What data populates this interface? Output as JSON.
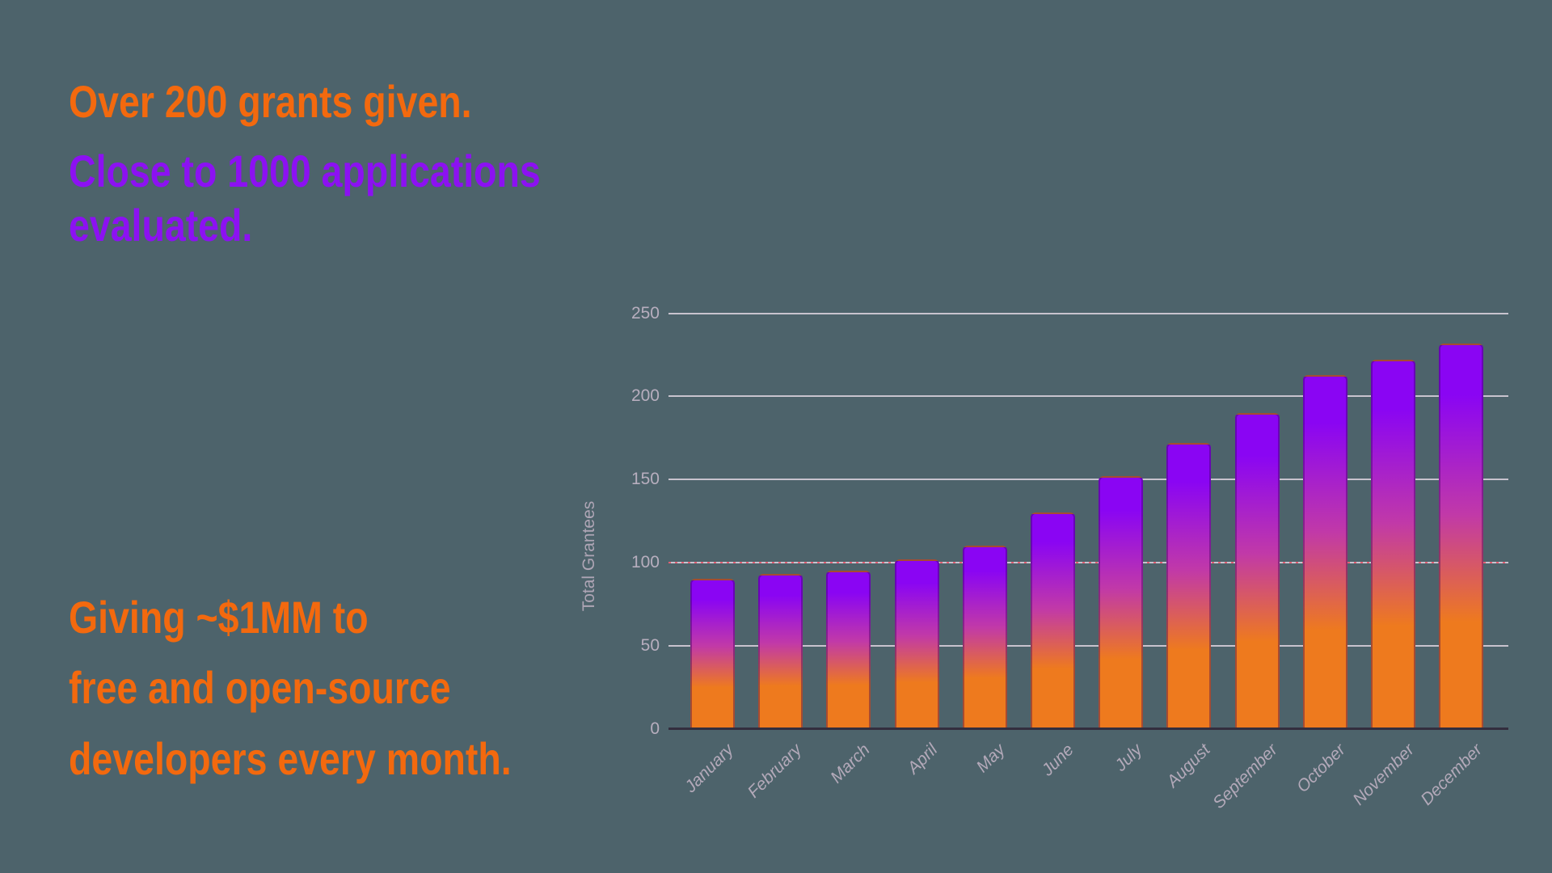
{
  "headline": {
    "lines": [
      {
        "text": "Over 200 grants given.",
        "color": "orange"
      },
      {
        "text": "Close to 1000 applications",
        "color": "purple"
      },
      {
        "text": "evaluated.",
        "color": "purple"
      },
      {
        "text": "Giving ~$1MM to",
        "color": "orange"
      },
      {
        "text": "free and open-source",
        "color": "orange"
      },
      {
        "text": "developers every month.",
        "color": "orange"
      }
    ]
  },
  "chart_data": {
    "type": "bar",
    "title": "",
    "xlabel": "",
    "ylabel": "Total Grantees",
    "categories": [
      "January",
      "February",
      "March",
      "April",
      "May",
      "June",
      "July",
      "August",
      "September",
      "October",
      "November",
      "December"
    ],
    "values": [
      90,
      93,
      95,
      102,
      110,
      130,
      152,
      172,
      190,
      213,
      222,
      232
    ],
    "yticks": [
      0,
      50,
      100,
      150,
      200,
      250
    ],
    "ylim": [
      0,
      250
    ],
    "grid": true,
    "legend": false,
    "annotation_line_y": 100,
    "bar_gradient_top": "#8A05F3",
    "bar_gradient_mid": "#C139A8",
    "bar_gradient_bottom": "#EE7A1E"
  },
  "colors": {
    "background": "#4D636B",
    "orange_text": "#F3690E",
    "purple_text": "#8C11F2",
    "gridline": "#C8C3CE",
    "axis_line": "#332E3E",
    "tick_text": "#B7AEBE"
  }
}
